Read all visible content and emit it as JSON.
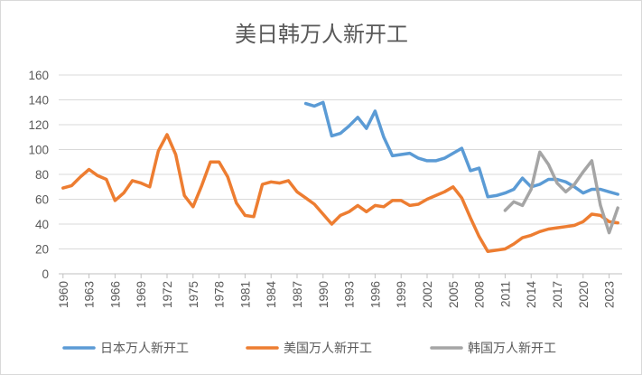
{
  "chart_data": {
    "type": "line",
    "title": "美日韩万人新开工",
    "xlabel": "",
    "ylabel": "",
    "ylim": [
      0,
      160
    ],
    "yticks": [
      "0",
      "20",
      "40",
      "60",
      "80",
      "100",
      "120",
      "140",
      "160"
    ],
    "xlim": [
      1960,
      2024
    ],
    "xticks": [
      "1960",
      "1963",
      "1966",
      "1969",
      "1972",
      "1975",
      "1978",
      "1981",
      "1984",
      "1987",
      "1990",
      "1993",
      "1996",
      "1999",
      "2002",
      "2005",
      "2008",
      "2011",
      "2014",
      "2017",
      "2020",
      "2023"
    ],
    "grid": true,
    "legend": "bottom",
    "series": [
      {
        "name": "日本万人新开工",
        "color": "#5b9bd5",
        "x": [
          1988,
          1989,
          1990,
          1991,
          1992,
          1993,
          1994,
          1995,
          1996,
          1997,
          1998,
          1999,
          2000,
          2001,
          2002,
          2003,
          2004,
          2005,
          2006,
          2007,
          2008,
          2009,
          2010,
          2011,
          2012,
          2013,
          2014,
          2015,
          2016,
          2017,
          2018,
          2019,
          2020,
          2021,
          2022,
          2023,
          2024
        ],
        "values": [
          137,
          135,
          138,
          111,
          113,
          119,
          126,
          117,
          131,
          110,
          95,
          96,
          97,
          93,
          91,
          91,
          93,
          97,
          101,
          83,
          85,
          62,
          63,
          65,
          68,
          77,
          70,
          72,
          76,
          76,
          74,
          70,
          65,
          68,
          68,
          66,
          64
        ]
      },
      {
        "name": "美国万人新开工",
        "color": "#ed7d31",
        "x": [
          1960,
          1961,
          1962,
          1963,
          1964,
          1965,
          1966,
          1967,
          1968,
          1969,
          1970,
          1971,
          1972,
          1973,
          1974,
          1975,
          1976,
          1977,
          1978,
          1979,
          1980,
          1981,
          1982,
          1983,
          1984,
          1985,
          1986,
          1987,
          1988,
          1989,
          1990,
          1991,
          1992,
          1993,
          1994,
          1995,
          1996,
          1997,
          1998,
          1999,
          2000,
          2001,
          2002,
          2003,
          2004,
          2005,
          2006,
          2007,
          2008,
          2009,
          2010,
          2011,
          2012,
          2013,
          2014,
          2015,
          2016,
          2017,
          2018,
          2019,
          2020,
          2021,
          2022,
          2023,
          2024
        ],
        "values": [
          69,
          71,
          78,
          84,
          79,
          76,
          59,
          65,
          75,
          73,
          70,
          99,
          112,
          96,
          63,
          54,
          71,
          90,
          90,
          78,
          57,
          47,
          46,
          72,
          74,
          73,
          75,
          66,
          61,
          56,
          48,
          40,
          47,
          50,
          55,
          50,
          55,
          54,
          59,
          59,
          55,
          56,
          60,
          63,
          66,
          70,
          61,
          45,
          30,
          18,
          19,
          20,
          24,
          29,
          31,
          34,
          36,
          37,
          38,
          39,
          42,
          48,
          47,
          42,
          41
        ]
      },
      {
        "name": "韩国万人新开工",
        "color": "#a5a5a5",
        "x": [
          2011,
          2012,
          2013,
          2014,
          2015,
          2016,
          2017,
          2018,
          2019,
          2020,
          2021,
          2022,
          2023,
          2024
        ],
        "values": [
          51,
          58,
          55,
          68,
          98,
          88,
          73,
          66,
          72,
          82,
          91,
          55,
          33,
          53
        ]
      }
    ]
  }
}
